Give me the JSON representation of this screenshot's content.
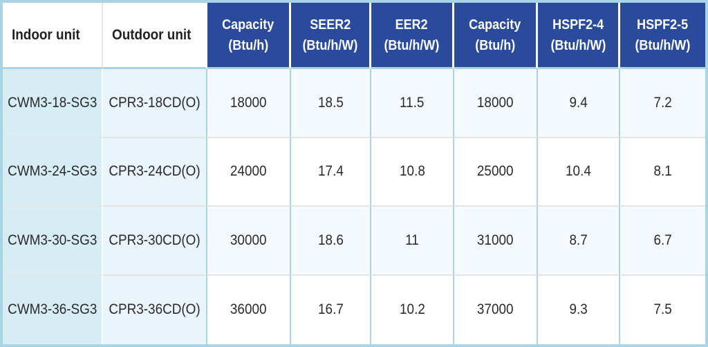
{
  "chart_data": {
    "type": "table",
    "columns": [
      {
        "label": "Indoor unit",
        "unit": ""
      },
      {
        "label": "Outdoor unit",
        "unit": ""
      },
      {
        "label": "Capacity",
        "unit": "(Btu/h)"
      },
      {
        "label": "SEER2",
        "unit": "(Btu/h/W)"
      },
      {
        "label": "EER2",
        "unit": "(Btu/h/W)"
      },
      {
        "label": "Capacity",
        "unit": "(Btu/h)"
      },
      {
        "label": "HSPF2-4",
        "unit": "(Btu/h/W)"
      },
      {
        "label": "HSPF2-5",
        "unit": "(Btu/h/W)"
      }
    ],
    "rows": [
      [
        "CWM3-18-SG3",
        "CPR3-18CD(O)",
        "18000",
        "18.5",
        "11.5",
        "18000",
        "9.4",
        "7.2"
      ],
      [
        "CWM3-24-SG3",
        "CPR3-24CD(O)",
        "24000",
        "17.4",
        "10.8",
        "25000",
        "10.4",
        "8.1"
      ],
      [
        "CWM3-30-SG3",
        "CPR3-30CD(O)",
        "30000",
        "18.6",
        "11",
        "31000",
        "8.7",
        "6.7"
      ],
      [
        "CWM3-36-SG3",
        "CPR3-36CD(O)",
        "36000",
        "16.7",
        "10.2",
        "37000",
        "9.3",
        "7.5"
      ]
    ]
  },
  "colors": {
    "header_bg": "#2a4a9c",
    "header_text": "#ffffff",
    "outer_border": "#a9d4e5",
    "indoor_column_bg": "#d7edf6",
    "outdoor_column_bg": "#e9f5fb",
    "row_tint_bg": "#f4fafd",
    "row_plain_bg": "#ffffff",
    "body_text": "#2b2a2a",
    "row_divider": "#e4e4e4"
  }
}
